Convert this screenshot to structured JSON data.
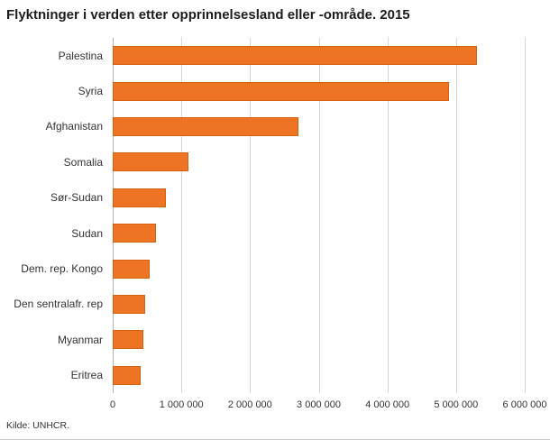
{
  "chart_data": {
    "type": "bar",
    "orientation": "horizontal",
    "title": "Flyktninger i verden etter opprinnelsesland eller -område. 2015",
    "categories": [
      "Palestina",
      "Syria",
      "Afghanistan",
      "Somalia",
      "Sør-Sudan",
      "Sudan",
      "Dem. rep. Kongo",
      "Den sentralafr. rep",
      "Myanmar",
      "Eritrea"
    ],
    "values": [
      5300000,
      4900000,
      2700000,
      1100000,
      780000,
      630000,
      540000,
      470000,
      450000,
      410000
    ],
    "xlim": [
      0,
      6000000
    ],
    "ticks": [
      0,
      1000000,
      2000000,
      3000000,
      4000000,
      5000000,
      6000000
    ],
    "tick_labels": [
      "0",
      "1 000 000",
      "2 000 000",
      "3 000 000",
      "4 000 000",
      "5 000 000",
      "6 000 000"
    ],
    "bar_color": "#ee7423",
    "bar_border_color": "#d2620f",
    "grid": true,
    "legend": false,
    "source": "Kilde: UNHCR."
  }
}
